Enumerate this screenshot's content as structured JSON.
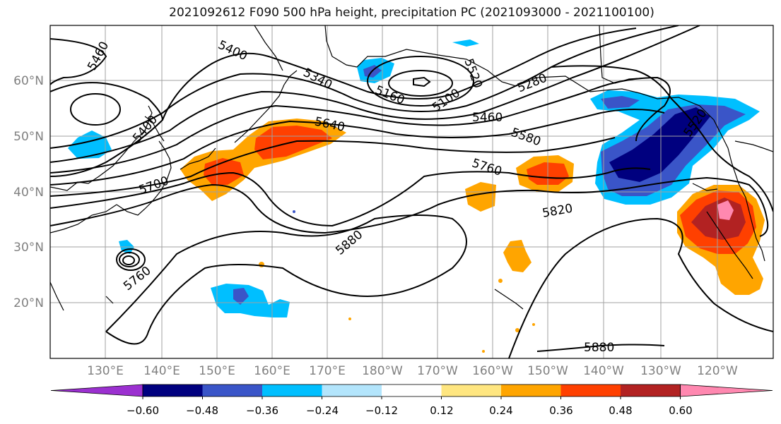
{
  "title": "2021092612 F090 500 hPa height, precipitation PC (2021093000 - 2021100100)",
  "lat_labels": [
    "60°N",
    "50°N",
    "40°N",
    "30°N",
    "20°N"
  ],
  "lon_labels": [
    "130°E",
    "140°E",
    "150°E",
    "160°E",
    "170°E",
    "180°W",
    "170°W",
    "160°W",
    "150°W",
    "140°W",
    "130°W",
    "120°W"
  ],
  "contour_labels": [
    "5460",
    "5400",
    "5340",
    "5160",
    "5100",
    "5520",
    "5280",
    "5460",
    "5400",
    "5640",
    "5580",
    "5700",
    "5760",
    "5820",
    "5880",
    "5760",
    "5880",
    "5520"
  ],
  "colorbar": {
    "ticks": [
      "−0.60",
      "−0.48",
      "−0.36",
      "−0.24",
      "−0.12",
      "0.12",
      "0.24",
      "0.36",
      "0.48",
      "0.60"
    ],
    "colors": [
      "#9b30d0",
      "#00007f",
      "#3a55c8",
      "#00bfff",
      "#b3e5fc",
      "#ffffff",
      "#ffe680",
      "#ffa500",
      "#ff4000",
      "#b22222",
      "#ff88b0"
    ]
  },
  "colors": {
    "contour": "#000000",
    "grid": "#a0a0a0",
    "coast": "#000000",
    "axis_label": "#808080"
  }
}
